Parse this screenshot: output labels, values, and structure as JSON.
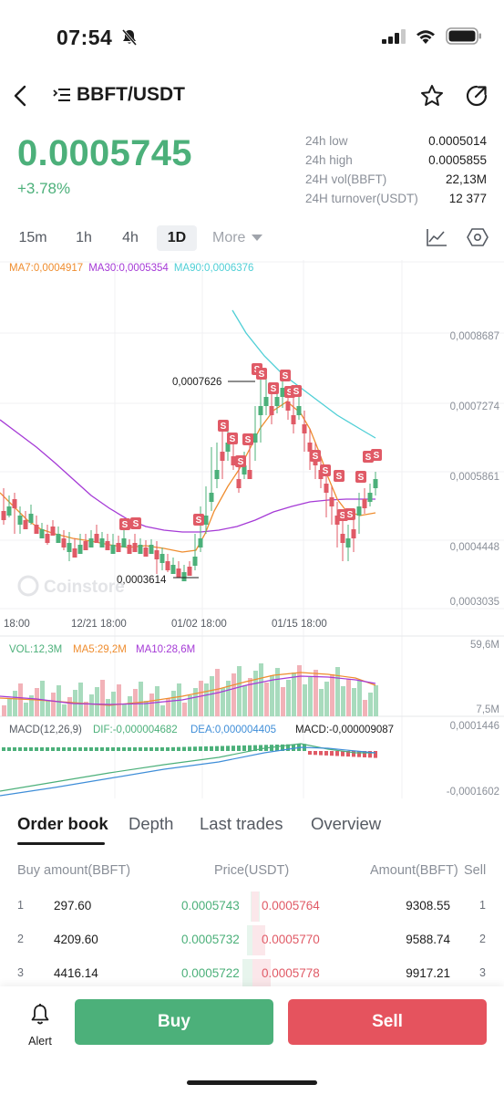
{
  "status": {
    "time": "07:54"
  },
  "nav": {
    "pair": "BBFT/USDT"
  },
  "ticker": {
    "price": "0.0005745",
    "change": "+3.78%",
    "stats": [
      {
        "label": "24h low",
        "value": "0.0005014"
      },
      {
        "label": "24h high",
        "value": "0.0005855"
      },
      {
        "label": "24H vol(BBFT)",
        "value": "22,13M"
      },
      {
        "label": "24H turnover(USDT)",
        "value": "12 377"
      }
    ]
  },
  "timeframes": {
    "items": [
      "15m",
      "1h",
      "4h",
      "1D"
    ],
    "active": "1D",
    "more": "More"
  },
  "ma_legend": {
    "ma7": "MA7:0,0004917",
    "ma30": "MA30:0,0005354",
    "ma90": "MA90:0,0006376"
  },
  "colors": {
    "up": "#4cb07a",
    "down": "#e05a66",
    "ma7": "#ef8d2f",
    "ma30": "#a53ad6",
    "ma90": "#4fcfd6",
    "dif": "#3f8ed8",
    "dea": "#4cb07a"
  },
  "watermark": "Coinstore",
  "chart_data": [
    {
      "type": "candlestick",
      "y_axis_labels": [
        "0,0008687",
        "0,0007274",
        "0,0005861",
        "0,0004448",
        "0,0003035"
      ],
      "x_axis_labels": [
        "18:00",
        "12/21 18:00",
        "01/02 18:00",
        "01/15 18:00"
      ],
      "annotations": {
        "high": "0,0007626",
        "low": "0,0003614"
      },
      "marker_label": "S",
      "ylim": [
        0.0003035,
        0.0008687
      ],
      "ma_series": [
        {
          "name": "MA7",
          "value": "0,0004917"
        },
        {
          "name": "MA30",
          "value": "0,0005354"
        },
        {
          "name": "MA90",
          "value": "0,0006376"
        }
      ]
    },
    {
      "type": "bar",
      "legend": {
        "vol": "VOL:12,3M",
        "ma5": "MA5:29,2M",
        "ma10": "MA10:28,6M"
      },
      "y_axis_labels": [
        "59,6M",
        "7,5M"
      ]
    },
    {
      "type": "bar",
      "legend": {
        "macd": "MACD(12,26,9)",
        "dif": "DIF:-0,000004682",
        "dea": "DEA:0,000004405",
        "hist": "MACD:-0,000009087"
      },
      "y_axis_labels": [
        "0,0001446",
        "-0,0001602"
      ]
    }
  ],
  "tabs": [
    "Order book",
    "Depth",
    "Last trades",
    "Overview"
  ],
  "orderbook": {
    "headers": {
      "buy": "Buy amount(BBFT)",
      "price": "Price(USDT)",
      "sell_amount": "Amount(BBFT)",
      "sell": "Sell"
    },
    "rows": [
      {
        "idx": "1",
        "buy_amount": "297.60",
        "buy_price": "0.0005743",
        "sell_price": "0.0005764",
        "sell_amount": "9308.55",
        "sell_idx": "1"
      },
      {
        "idx": "2",
        "buy_amount": "4209.60",
        "buy_price": "0.0005732",
        "sell_price": "0.0005770",
        "sell_amount": "9588.74",
        "sell_idx": "2"
      },
      {
        "idx": "3",
        "buy_amount": "4416.14",
        "buy_price": "0.0005722",
        "sell_price": "0.0005778",
        "sell_amount": "9917.21",
        "sell_idx": "3"
      }
    ]
  },
  "bottom": {
    "alert": "Alert",
    "buy": "Buy",
    "sell": "Sell"
  }
}
